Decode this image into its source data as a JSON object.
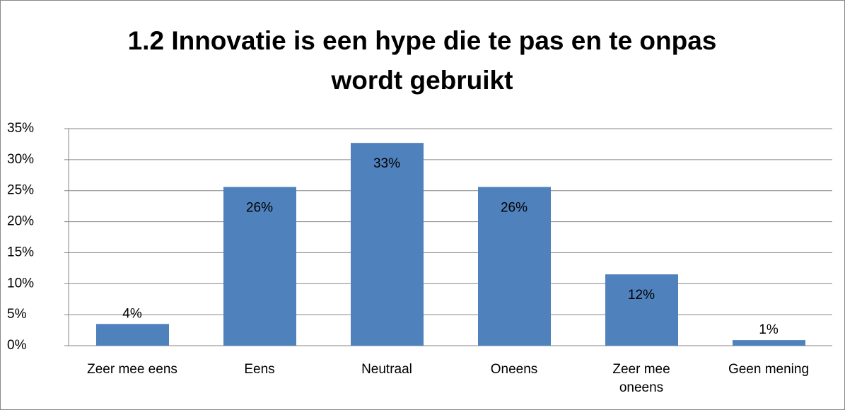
{
  "chart_data": {
    "type": "bar",
    "title": "1.2 Innovatie is een hype die te pas en te onpas wordt gebruikt",
    "categories": [
      "Zeer mee eens",
      "Eens",
      "Neutraal",
      "Oneens",
      "Zeer mee oneens",
      "Geen mening"
    ],
    "values": [
      3.5,
      25.6,
      32.7,
      25.6,
      11.5,
      0.9
    ],
    "value_labels": [
      "4%",
      "26%",
      "33%",
      "26%",
      "12%",
      "1%"
    ],
    "color": "#4f81bd",
    "ylim": [
      0,
      35
    ],
    "yticks": [
      {
        "value": 0,
        "label": "0%"
      },
      {
        "value": 5,
        "label": "5%"
      },
      {
        "value": 10,
        "label": "10%"
      },
      {
        "value": 15,
        "label": "15%"
      },
      {
        "value": 20,
        "label": "20%"
      },
      {
        "value": 25,
        "label": "25%"
      },
      {
        "value": 30,
        "label": "30%"
      },
      {
        "value": 35,
        "label": "35%"
      }
    ],
    "grid": true
  }
}
